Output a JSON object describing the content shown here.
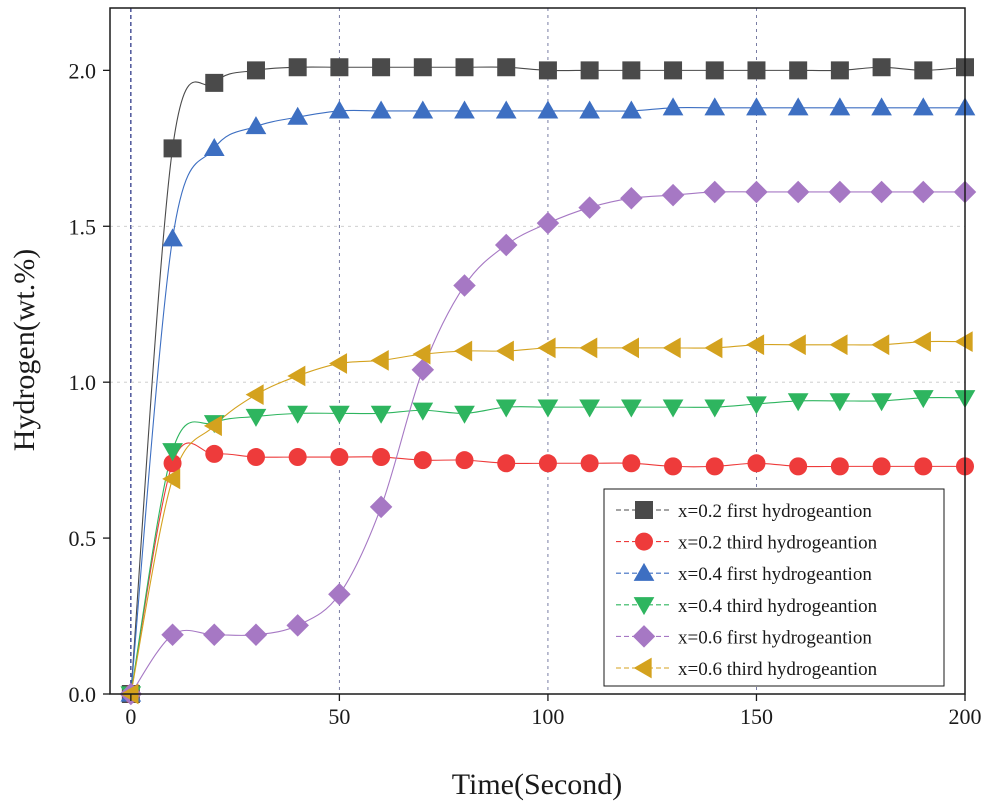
{
  "chart_data": {
    "type": "scatter",
    "title": "",
    "xlabel": "Time(Second)",
    "ylabel": "Hydrogen(wt.%)",
    "xlim": [
      -5,
      200
    ],
    "ylim": [
      0,
      2.2
    ],
    "xticks": [
      0,
      50,
      100,
      150,
      200
    ],
    "yticks": [
      0.0,
      0.5,
      1.0,
      1.5,
      2.0
    ],
    "xtick_labels": [
      "0",
      "50",
      "100",
      "150",
      "200"
    ],
    "ytick_labels": [
      "0.0",
      "0.5",
      "1.0",
      "1.5",
      "2.0"
    ],
    "grid": {
      "vertical": [
        0,
        50,
        100,
        150
      ],
      "horizontal": [
        1.0,
        1.5
      ]
    },
    "legend_position": "bottom-right",
    "x": [
      0,
      10,
      20,
      30,
      40,
      50,
      60,
      70,
      80,
      90,
      100,
      110,
      120,
      130,
      140,
      150,
      160,
      170,
      180,
      190,
      200
    ],
    "series": [
      {
        "name": "x=0.2 first hydrogeantion",
        "marker": "square",
        "color": "#4a4a4a",
        "values": [
          0.0,
          1.75,
          1.96,
          2.0,
          2.01,
          2.01,
          2.01,
          2.01,
          2.01,
          2.01,
          2.0,
          2.0,
          2.0,
          2.0,
          2.0,
          2.0,
          2.0,
          2.0,
          2.01,
          2.0,
          2.01
        ]
      },
      {
        "name": "x=0.2 third hydrogeantion",
        "marker": "circle",
        "color": "#ee3b3b",
        "values": [
          0.0,
          0.74,
          0.77,
          0.76,
          0.76,
          0.76,
          0.76,
          0.75,
          0.75,
          0.74,
          0.74,
          0.74,
          0.74,
          0.73,
          0.73,
          0.74,
          0.73,
          0.73,
          0.73,
          0.73,
          0.73
        ]
      },
      {
        "name": "x=0.4 first hydrogeantion",
        "marker": "triangle-up",
        "color": "#3d6fc2",
        "values": [
          0.0,
          1.46,
          1.75,
          1.82,
          1.85,
          1.87,
          1.87,
          1.87,
          1.87,
          1.87,
          1.87,
          1.87,
          1.87,
          1.88,
          1.88,
          1.88,
          1.88,
          1.88,
          1.88,
          1.88,
          1.88
        ]
      },
      {
        "name": "x=0.4 third hydrogeantion",
        "marker": "triangle-down",
        "color": "#2eb55f",
        "values": [
          0.0,
          0.78,
          0.87,
          0.89,
          0.9,
          0.9,
          0.9,
          0.91,
          0.9,
          0.92,
          0.92,
          0.92,
          0.92,
          0.92,
          0.92,
          0.93,
          0.94,
          0.94,
          0.94,
          0.95,
          0.95
        ]
      },
      {
        "name": "x=0.6 first hydrogeantion",
        "marker": "diamond",
        "color": "#a678c4",
        "values": [
          0.0,
          0.19,
          0.19,
          0.19,
          0.22,
          0.32,
          0.6,
          1.04,
          1.31,
          1.44,
          1.51,
          1.56,
          1.59,
          1.6,
          1.61,
          1.61,
          1.61,
          1.61,
          1.61,
          1.61,
          1.61
        ]
      },
      {
        "name": "x=0.6 third hydrogeantion",
        "marker": "triangle-left",
        "color": "#d4a21e",
        "values": [
          0.0,
          0.69,
          0.86,
          0.96,
          1.02,
          1.06,
          1.07,
          1.09,
          1.1,
          1.1,
          1.11,
          1.11,
          1.11,
          1.11,
          1.11,
          1.12,
          1.12,
          1.12,
          1.12,
          1.13,
          1.13
        ]
      }
    ]
  }
}
